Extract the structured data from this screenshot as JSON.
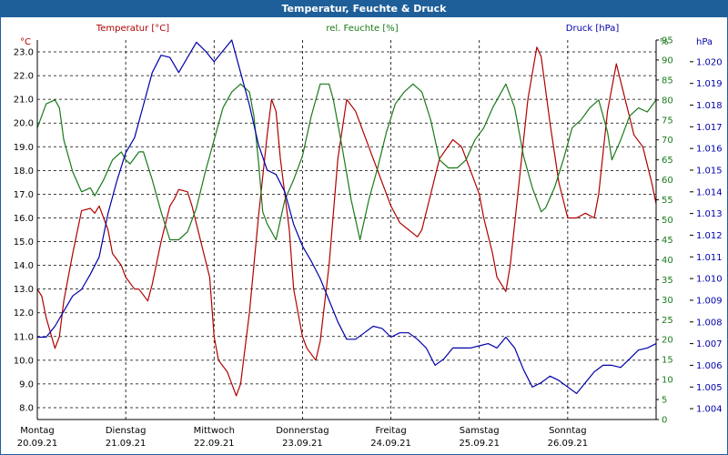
{
  "window": {
    "title": "Temperatur, Feuchte & Druck"
  },
  "colors": {
    "temperature": "#b00000",
    "humidity": "#1a7a1a",
    "pressure": "#0000aa",
    "grid": "#000000",
    "titlebar": "#1f5f99"
  },
  "chart_data": {
    "type": "line",
    "grid": true,
    "legend": "top (colored axis headers)",
    "days": [
      {
        "name": "Montag",
        "date": "20.09.21"
      },
      {
        "name": "Dienstag",
        "date": "21.09.21"
      },
      {
        "name": "Mittwoch",
        "date": "22.09.21"
      },
      {
        "name": "Donnerstag",
        "date": "23.09.21"
      },
      {
        "name": "Freitag",
        "date": "24.09.21"
      },
      {
        "name": "Samstag",
        "date": "25.09.21"
      },
      {
        "name": "Sonntag",
        "date": "26.09.21"
      }
    ],
    "x_unit": "days since 20.09.21 00:00",
    "xlim": [
      0,
      7
    ],
    "axes": {
      "temperature": {
        "label": "Temperatur [°C]",
        "unit": "°C",
        "ylim": [
          7.5,
          23.5
        ],
        "ticks": [
          "8.0",
          "9.0",
          "10.0",
          "11.0",
          "12.0",
          "13.0",
          "14.0",
          "15.0",
          "16.0",
          "17.0",
          "18.0",
          "19.0",
          "20.0",
          "21.0",
          "22.0",
          "23.0"
        ]
      },
      "humidity": {
        "label": "rel. Feuchte [%]",
        "unit": "%",
        "ylim": [
          0,
          95
        ],
        "ticks": [
          "0",
          "5",
          "10",
          "15",
          "20",
          "25",
          "30",
          "35",
          "40",
          "45",
          "50",
          "55",
          "60",
          "65",
          "70",
          "75",
          "80",
          "85",
          "90",
          "95"
        ]
      },
      "pressure": {
        "label": "Druck [hPa]",
        "unit": "hPa",
        "ylim": [
          1.0035,
          1.021
        ],
        "ticks": [
          "1.004",
          "1.005",
          "1.006",
          "1.007",
          "1.008",
          "1.009",
          "1.010",
          "1.011",
          "1.012",
          "1.013",
          "1.014",
          "1.015",
          "1.016",
          "1.017",
          "1.018",
          "1.019",
          "1.020"
        ]
      }
    },
    "series": [
      {
        "name": "Temperatur [°C]",
        "axis": "temperature",
        "points": [
          [
            0,
            13.0
          ],
          [
            0.05,
            12.7
          ],
          [
            0.1,
            11.8
          ],
          [
            0.2,
            10.5
          ],
          [
            0.25,
            11.0
          ],
          [
            0.3,
            12.5
          ],
          [
            0.4,
            14.5
          ],
          [
            0.5,
            16.3
          ],
          [
            0.6,
            16.4
          ],
          [
            0.65,
            16.2
          ],
          [
            0.7,
            16.5
          ],
          [
            0.8,
            15.5
          ],
          [
            0.85,
            14.5
          ],
          [
            0.95,
            14.0
          ],
          [
            1.0,
            13.5
          ],
          [
            1.1,
            13.0
          ],
          [
            1.15,
            13.0
          ],
          [
            1.25,
            12.5
          ],
          [
            1.3,
            13.2
          ],
          [
            1.4,
            15.0
          ],
          [
            1.5,
            16.5
          ],
          [
            1.55,
            16.8
          ],
          [
            1.6,
            17.2
          ],
          [
            1.7,
            17.1
          ],
          [
            1.75,
            16.5
          ],
          [
            1.85,
            15.0
          ],
          [
            1.95,
            13.5
          ],
          [
            2.0,
            11.0
          ],
          [
            2.05,
            10.0
          ],
          [
            2.15,
            9.5
          ],
          [
            2.25,
            8.5
          ],
          [
            2.3,
            9.0
          ],
          [
            2.4,
            12.0
          ],
          [
            2.5,
            16.0
          ],
          [
            2.6,
            19.5
          ],
          [
            2.65,
            21.0
          ],
          [
            2.7,
            20.5
          ],
          [
            2.75,
            18.5
          ],
          [
            2.85,
            15.5
          ],
          [
            2.9,
            13.0
          ],
          [
            3.0,
            11.0
          ],
          [
            3.05,
            10.5
          ],
          [
            3.15,
            10.0
          ],
          [
            3.2,
            10.8
          ],
          [
            3.3,
            14.0
          ],
          [
            3.4,
            18.5
          ],
          [
            3.5,
            21.0
          ],
          [
            3.6,
            20.5
          ],
          [
            3.7,
            19.5
          ],
          [
            3.8,
            18.5
          ],
          [
            3.9,
            17.5
          ],
          [
            4.0,
            16.5
          ],
          [
            4.1,
            15.8
          ],
          [
            4.2,
            15.5
          ],
          [
            4.3,
            15.2
          ],
          [
            4.35,
            15.5
          ],
          [
            4.45,
            17.0
          ],
          [
            4.55,
            18.5
          ],
          [
            4.7,
            19.3
          ],
          [
            4.8,
            19.0
          ],
          [
            4.9,
            18.0
          ],
          [
            5.0,
            17.0
          ],
          [
            5.05,
            16.0
          ],
          [
            5.15,
            14.5
          ],
          [
            5.2,
            13.5
          ],
          [
            5.3,
            12.9
          ],
          [
            5.35,
            14.0
          ],
          [
            5.45,
            17.5
          ],
          [
            5.55,
            21.0
          ],
          [
            5.65,
            23.2
          ],
          [
            5.7,
            22.8
          ],
          [
            5.8,
            20.0
          ],
          [
            5.9,
            17.5
          ],
          [
            6.0,
            16.0
          ],
          [
            6.1,
            16.0
          ],
          [
            6.2,
            16.2
          ],
          [
            6.3,
            16.0
          ],
          [
            6.35,
            17.0
          ],
          [
            6.45,
            20.5
          ],
          [
            6.55,
            22.5
          ],
          [
            6.65,
            21.0
          ],
          [
            6.75,
            19.5
          ],
          [
            6.85,
            19.0
          ],
          [
            6.95,
            17.5
          ],
          [
            7.0,
            16.6
          ]
        ]
      },
      {
        "name": "rel. Feuchte [%]",
        "axis": "humidity",
        "points": [
          [
            0,
            73
          ],
          [
            0.1,
            79
          ],
          [
            0.2,
            80
          ],
          [
            0.25,
            78
          ],
          [
            0.3,
            70
          ],
          [
            0.4,
            62
          ],
          [
            0.5,
            57
          ],
          [
            0.6,
            58
          ],
          [
            0.65,
            56
          ],
          [
            0.75,
            60
          ],
          [
            0.85,
            65
          ],
          [
            0.95,
            67
          ],
          [
            1.0,
            65
          ],
          [
            1.05,
            64
          ],
          [
            1.15,
            67
          ],
          [
            1.2,
            67
          ],
          [
            1.3,
            60
          ],
          [
            1.4,
            52
          ],
          [
            1.5,
            45
          ],
          [
            1.6,
            45
          ],
          [
            1.7,
            47
          ],
          [
            1.8,
            53
          ],
          [
            1.9,
            62
          ],
          [
            2.0,
            70
          ],
          [
            2.1,
            78
          ],
          [
            2.2,
            82
          ],
          [
            2.3,
            84
          ],
          [
            2.4,
            82
          ],
          [
            2.45,
            76
          ],
          [
            2.5,
            65
          ],
          [
            2.55,
            52
          ],
          [
            2.6,
            49
          ],
          [
            2.7,
            45
          ],
          [
            2.8,
            55
          ],
          [
            2.9,
            60
          ],
          [
            3.0,
            66
          ],
          [
            3.1,
            76
          ],
          [
            3.2,
            84
          ],
          [
            3.3,
            84
          ],
          [
            3.35,
            80
          ],
          [
            3.45,
            68
          ],
          [
            3.55,
            55
          ],
          [
            3.65,
            45
          ],
          [
            3.75,
            55
          ],
          [
            3.85,
            63
          ],
          [
            3.95,
            72
          ],
          [
            4.05,
            79
          ],
          [
            4.15,
            82
          ],
          [
            4.25,
            84
          ],
          [
            4.35,
            82
          ],
          [
            4.45,
            75
          ],
          [
            4.55,
            65
          ],
          [
            4.65,
            63
          ],
          [
            4.75,
            63
          ],
          [
            4.85,
            65
          ],
          [
            4.95,
            70
          ],
          [
            5.05,
            73
          ],
          [
            5.15,
            78
          ],
          [
            5.25,
            82
          ],
          [
            5.3,
            84
          ],
          [
            5.4,
            78
          ],
          [
            5.5,
            66
          ],
          [
            5.6,
            58
          ],
          [
            5.7,
            52
          ],
          [
            5.75,
            53
          ],
          [
            5.85,
            58
          ],
          [
            5.95,
            65
          ],
          [
            6.05,
            73
          ],
          [
            6.15,
            75
          ],
          [
            6.25,
            78
          ],
          [
            6.35,
            80
          ],
          [
            6.45,
            72
          ],
          [
            6.5,
            65
          ],
          [
            6.6,
            70
          ],
          [
            6.7,
            76
          ],
          [
            6.8,
            78
          ],
          [
            6.9,
            77
          ],
          [
            7.0,
            80
          ]
        ]
      },
      {
        "name": "Druck [hPa]",
        "axis": "pressure",
        "points": [
          [
            0,
            1.0073
          ],
          [
            0.1,
            1.0073
          ],
          [
            0.2,
            1.0078
          ],
          [
            0.3,
            1.0085
          ],
          [
            0.4,
            1.0092
          ],
          [
            0.5,
            1.0095
          ],
          [
            0.6,
            1.0102
          ],
          [
            0.7,
            1.011
          ],
          [
            0.8,
            1.013
          ],
          [
            0.9,
            1.0145
          ],
          [
            1.0,
            1.0158
          ],
          [
            1.1,
            1.0165
          ],
          [
            1.2,
            1.018
          ],
          [
            1.3,
            1.0195
          ],
          [
            1.4,
            1.0203
          ],
          [
            1.5,
            1.0202
          ],
          [
            1.6,
            1.0195
          ],
          [
            1.7,
            1.0202
          ],
          [
            1.8,
            1.0209
          ],
          [
            1.9,
            1.0205
          ],
          [
            2.0,
            1.02
          ],
          [
            2.1,
            1.0205
          ],
          [
            2.2,
            1.021
          ],
          [
            2.3,
            1.0195
          ],
          [
            2.4,
            1.018
          ],
          [
            2.5,
            1.0162
          ],
          [
            2.6,
            1.015
          ],
          [
            2.7,
            1.0148
          ],
          [
            2.8,
            1.014
          ],
          [
            2.9,
            1.0125
          ],
          [
            3.0,
            1.0115
          ],
          [
            3.1,
            1.0108
          ],
          [
            3.2,
            1.01
          ],
          [
            3.3,
            1.009
          ],
          [
            3.4,
            1.008
          ],
          [
            3.5,
            1.0072
          ],
          [
            3.6,
            1.0072
          ],
          [
            3.7,
            1.0075
          ],
          [
            3.8,
            1.0078
          ],
          [
            3.9,
            1.0077
          ],
          [
            4.0,
            1.0073
          ],
          [
            4.1,
            1.0075
          ],
          [
            4.2,
            1.0075
          ],
          [
            4.3,
            1.0072
          ],
          [
            4.4,
            1.0068
          ],
          [
            4.5,
            1.006
          ],
          [
            4.6,
            1.0063
          ],
          [
            4.7,
            1.0068
          ],
          [
            4.8,
            1.0068
          ],
          [
            4.9,
            1.0068
          ],
          [
            5.0,
            1.0069
          ],
          [
            5.1,
            1.007
          ],
          [
            5.2,
            1.0068
          ],
          [
            5.3,
            1.0073
          ],
          [
            5.4,
            1.0068
          ],
          [
            5.5,
            1.0058
          ],
          [
            5.6,
            1.005
          ],
          [
            5.7,
            1.0052
          ],
          [
            5.8,
            1.0055
          ],
          [
            5.9,
            1.0053
          ],
          [
            6.0,
            1.005
          ],
          [
            6.1,
            1.0047
          ],
          [
            6.2,
            1.0052
          ],
          [
            6.3,
            1.0057
          ],
          [
            6.4,
            1.006
          ],
          [
            6.5,
            1.006
          ],
          [
            6.6,
            1.0059
          ],
          [
            6.7,
            1.0063
          ],
          [
            6.8,
            1.0067
          ],
          [
            6.9,
            1.0068
          ],
          [
            7.0,
            1.007
          ]
        ]
      }
    ]
  }
}
